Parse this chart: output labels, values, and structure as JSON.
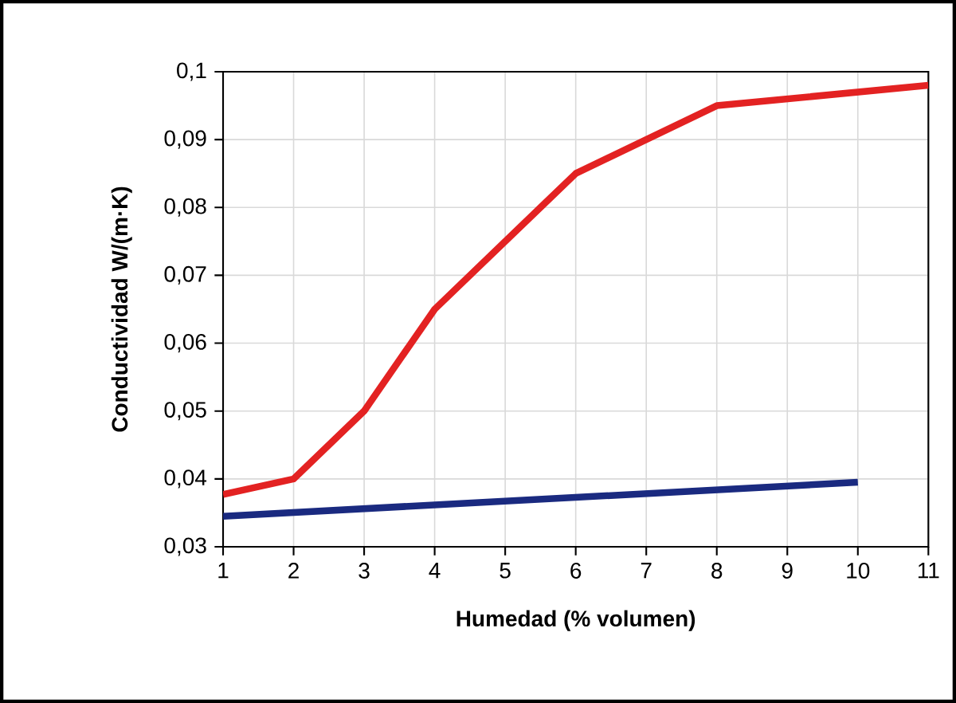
{
  "chart_data": {
    "type": "line",
    "xlabel": "Humedad (% volumen)",
    "ylabel": "Conductividad W/(m·K)",
    "xlim": [
      1,
      11
    ],
    "xticks": [
      1,
      2,
      3,
      4,
      5,
      6,
      7,
      8,
      9,
      10,
      11
    ],
    "ylim": [
      0.03,
      0.1
    ],
    "yticks": [
      {
        "value": 0.03,
        "label": "0,03"
      },
      {
        "value": 0.04,
        "label": "0,04"
      },
      {
        "value": 0.05,
        "label": "0,05"
      },
      {
        "value": 0.06,
        "label": "0,06"
      },
      {
        "value": 0.07,
        "label": "0,07"
      },
      {
        "value": 0.08,
        "label": "0,08"
      },
      {
        "value": 0.09,
        "label": "0,09"
      },
      {
        "value": 0.1,
        "label": "0,1"
      }
    ],
    "grid": true,
    "marker": "none",
    "line_style": "solid",
    "series": [
      {
        "color": "#e32222",
        "x": [
          1,
          2,
          3,
          4,
          6,
          7,
          8,
          11
        ],
        "values": [
          0.0377,
          0.04,
          0.05,
          0.065,
          0.085,
          0.09,
          0.095,
          0.098
        ]
      },
      {
        "color": "#1a2a80",
        "x": [
          1,
          10
        ],
        "values": [
          0.0345,
          0.0395
        ]
      }
    ]
  }
}
